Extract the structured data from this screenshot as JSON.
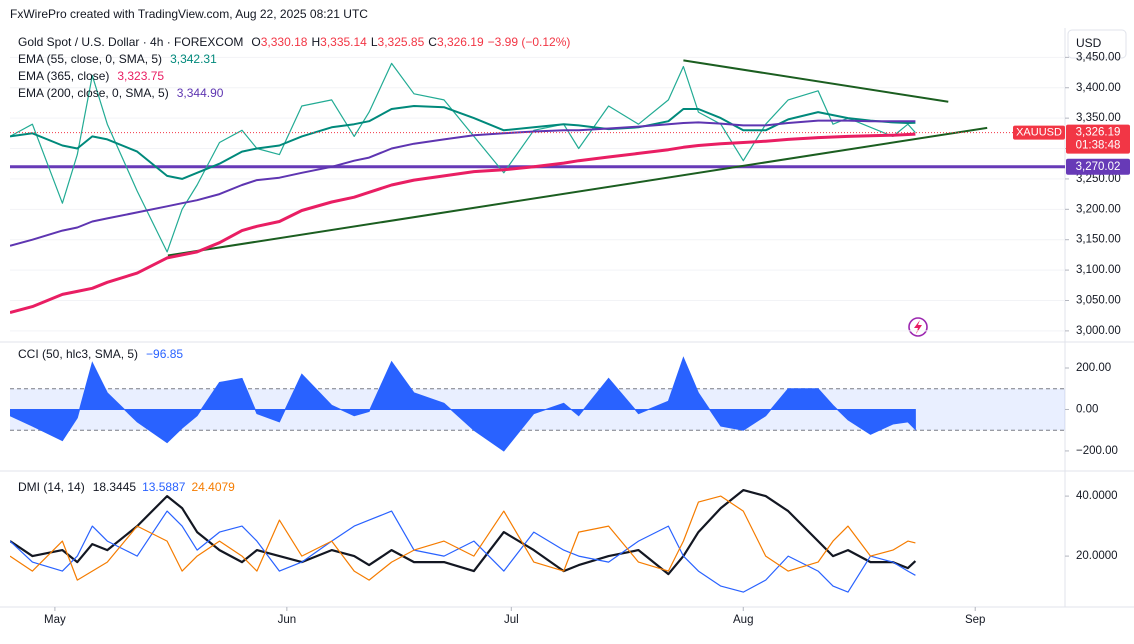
{
  "watermark": "FxWirePro created with TradingView.com, Aug 22, 2025 08:21 UTC",
  "currency_button": "USD",
  "chart_data": [
    {
      "type": "line",
      "title": "Gold Spot / U.S. Dollar · 4h · FOREXCOM",
      "ohlc": [
        {
          "key": "O",
          "label": "3,330.18"
        },
        {
          "key": "H",
          "label": "3,335.14"
        },
        {
          "key": "L",
          "label": "3,325.85"
        },
        {
          "key": "C",
          "label": "3,326.19"
        }
      ],
      "change": "−3.99 (−0.12%)",
      "countdown": "01:38:48",
      "x": [
        -6,
        -3,
        1,
        3,
        5,
        7,
        11,
        15,
        17,
        19,
        22,
        25,
        27,
        30,
        33,
        37,
        40,
        42,
        45,
        48,
        52,
        56,
        60,
        64,
        68,
        70,
        74,
        78,
        82,
        84,
        86,
        89,
        92,
        95,
        98,
        102,
        104,
        106,
        109,
        112,
        114,
        115
      ],
      "xlim": [
        -6,
        135
      ],
      "xticks": [
        {
          "value": 0,
          "label": "May"
        },
        {
          "value": 31,
          "label": "Jun"
        },
        {
          "value": 61,
          "label": "Jul"
        },
        {
          "value": 92,
          "label": "Aug"
        },
        {
          "value": 123,
          "label": "Sep"
        }
      ],
      "ylim": [
        2985,
        3495
      ],
      "yticks": [
        {
          "value": 3000,
          "label": "3,000.00"
        },
        {
          "value": 3050,
          "label": "3,050.00"
        },
        {
          "value": 3100,
          "label": "3,100.00"
        },
        {
          "value": 3150,
          "label": "3,150.00"
        },
        {
          "value": 3200,
          "label": "3,200.00"
        },
        {
          "value": 3250,
          "label": "3,250.00"
        },
        {
          "value": 3300,
          "label": "3,300.00"
        },
        {
          "value": 3350,
          "label": "3,350.00"
        },
        {
          "value": 3400,
          "label": "3,400.00"
        },
        {
          "value": 3450,
          "label": "3,450.00"
        }
      ],
      "grid": true,
      "series": [
        {
          "name": "XAUUSD",
          "color": "#22ab94",
          "last_label": "3,326.19",
          "values": [
            3320,
            3340,
            3210,
            3290,
            3420,
            3340,
            3230,
            3130,
            3200,
            3240,
            3310,
            3330,
            3300,
            3290,
            3370,
            3380,
            3320,
            3360,
            3440,
            3390,
            3380,
            3320,
            3260,
            3330,
            3340,
            3300,
            3370,
            3340,
            3380,
            3435,
            3360,
            3340,
            3280,
            3340,
            3380,
            3395,
            3340,
            3350,
            3335,
            3320,
            3340,
            3326.19
          ]
        },
        {
          "name": "EMA (55, close, 0, SMA, 5)",
          "color": "#00897b",
          "last_label": "3,342.31",
          "values": [
            3320,
            3325,
            3305,
            3300,
            3320,
            3315,
            3295,
            3255,
            3250,
            3260,
            3275,
            3295,
            3300,
            3305,
            3320,
            3335,
            3340,
            3345,
            3365,
            3370,
            3368,
            3350,
            3330,
            3335,
            3340,
            3338,
            3332,
            3335,
            3345,
            3365,
            3365,
            3350,
            3330,
            3330,
            3348,
            3360,
            3355,
            3350,
            3346,
            3343,
            3342,
            3342.31
          ]
        },
        {
          "name": "EMA (365, close)",
          "color": "#e91e63",
          "last_label": "3,323.75",
          "values": [
            3030,
            3040,
            3060,
            3065,
            3070,
            3080,
            3095,
            3120,
            3125,
            3130,
            3145,
            3165,
            3172,
            3180,
            3198,
            3212,
            3220,
            3228,
            3240,
            3248,
            3255,
            3262,
            3265,
            3270,
            3276,
            3280,
            3286,
            3292,
            3298,
            3302,
            3305,
            3308,
            3310,
            3312,
            3315,
            3318,
            3319,
            3320,
            3321,
            3322,
            3323,
            3323.75
          ]
        },
        {
          "name": "EMA (200, close, 0, SMA, 5)",
          "color": "#5e35b1",
          "last_label": "3,344.90",
          "values": [
            3140,
            3150,
            3165,
            3170,
            3180,
            3185,
            3195,
            3205,
            3210,
            3215,
            3225,
            3240,
            3248,
            3252,
            3260,
            3270,
            3280,
            3285,
            3300,
            3308,
            3315,
            3322,
            3325,
            3328,
            3330,
            3330,
            3333,
            3336,
            3340,
            3342,
            3343,
            3341,
            3338,
            3338,
            3342,
            3346,
            3346,
            3346,
            3345,
            3345,
            3345,
            3344.9
          ]
        }
      ],
      "trendlines": [
        {
          "color": "#1b5e20",
          "x": [
            84,
            119.4
          ],
          "y": [
            3445,
            3377
          ]
        },
        {
          "color": "#1b5e20",
          "x": [
            15.1,
            124.6
          ],
          "y": [
            3124,
            3334
          ]
        }
      ],
      "hline": {
        "value": 3270.02,
        "label": "3,270.02",
        "color": "#673ab7"
      }
    },
    {
      "type": "area",
      "title": "CCI (50, hlc3, SMA, 5)",
      "ylim": [
        -292,
        311
      ],
      "yticks": [
        {
          "value": 200,
          "label": "200.00"
        },
        {
          "value": 0,
          "label": "0.00"
        },
        {
          "value": -200,
          "label": "−200.00"
        }
      ],
      "band": [
        -100,
        100
      ],
      "series": [
        {
          "color": "#2962ff",
          "last_label": "−96.85",
          "values": [
            -30,
            -80,
            -150,
            -40,
            226,
            80,
            -60,
            -160,
            -90,
            -30,
            130,
            150,
            -20,
            -60,
            170,
            20,
            -30,
            -10,
            230,
            80,
            30,
            -100,
            -200,
            -20,
            30,
            -30,
            150,
            -20,
            40,
            250,
            80,
            -80,
            -100,
            -30,
            100,
            100,
            20,
            -50,
            -120,
            -70,
            -60,
            -96.85
          ]
        }
      ]
    },
    {
      "type": "line",
      "title": "DMI (14, 14)",
      "ylim": [
        3.7,
        47.7
      ],
      "yticks": [
        {
          "value": 40,
          "label": "40.0000"
        },
        {
          "value": 20,
          "label": "20.0000"
        }
      ],
      "series": [
        {
          "color": "#131722",
          "last_label": "18.3445",
          "values": [
            25,
            20,
            22,
            18,
            24,
            22,
            30,
            40,
            36,
            28,
            22,
            18,
            22,
            20,
            18,
            22,
            20,
            17,
            22,
            18,
            18,
            15,
            28,
            22,
            15,
            17,
            20,
            22,
            14,
            20,
            28,
            36,
            42,
            40,
            35,
            25,
            20,
            22,
            18,
            18,
            16,
            18.3445
          ]
        },
        {
          "color": "#2962ff",
          "last_label": "13.5887",
          "values": [
            25,
            18,
            15,
            20,
            30,
            25,
            20,
            35,
            30,
            22,
            28,
            30,
            25,
            15,
            18,
            25,
            30,
            32,
            35,
            22,
            20,
            25,
            15,
            28,
            22,
            20,
            18,
            25,
            30,
            20,
            15,
            10,
            8,
            12,
            20,
            15,
            10,
            8,
            20,
            18,
            15,
            13.5887
          ]
        },
        {
          "color": "#f57c00",
          "last_label": "24.4079",
          "values": [
            20,
            15,
            25,
            12,
            15,
            18,
            30,
            25,
            15,
            20,
            25,
            20,
            15,
            32,
            20,
            25,
            15,
            12,
            18,
            22,
            25,
            20,
            35,
            18,
            15,
            28,
            30,
            18,
            15,
            25,
            38,
            40,
            35,
            20,
            15,
            18,
            25,
            30,
            20,
            22,
            25,
            24.4079
          ]
        }
      ]
    }
  ]
}
